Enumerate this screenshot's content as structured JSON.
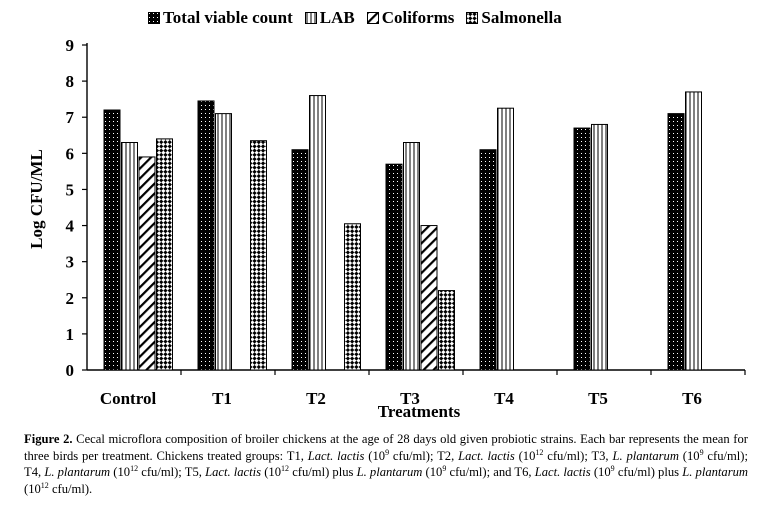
{
  "chart_data": {
    "type": "bar",
    "title": "",
    "xlabel": "Treatments",
    "ylabel": "Log CFU/ML",
    "ylim": [
      0,
      9
    ],
    "yticks": [
      "0",
      "1",
      "2",
      "3",
      "4",
      "5",
      "6",
      "7",
      "8",
      "9"
    ],
    "categories": [
      "Control",
      "T1",
      "T2",
      "T3",
      "T4",
      "T5",
      "T6"
    ],
    "legend_position": "top",
    "series": [
      {
        "name": "Total viable count",
        "pattern": "dots",
        "values": [
          7.2,
          7.45,
          6.1,
          5.7,
          6.1,
          6.7,
          7.1
        ]
      },
      {
        "name": "LAB",
        "pattern": "vlines",
        "values": [
          6.3,
          7.1,
          7.6,
          6.3,
          7.25,
          6.8,
          7.7
        ]
      },
      {
        "name": "Coliforms",
        "pattern": "diag",
        "values": [
          5.9,
          null,
          null,
          4.0,
          null,
          null,
          null
        ]
      },
      {
        "name": "Salmonella",
        "pattern": "checker",
        "values": [
          6.4,
          6.35,
          4.05,
          2.2,
          null,
          null,
          null
        ]
      }
    ],
    "colors": {
      "fill": "#000000",
      "background": "#ffffff"
    }
  },
  "caption": {
    "label": "Figure 2.",
    "parts": [
      " Cecal microflora composition of broiler chickens at the age of 28 days old given probiotic strains. Each bar represents the mean for three birds per treatment. Chickens treated groups: T1, ",
      "Lact. lactis",
      " (10",
      "9",
      " cfu/ml); T2, ",
      "Lact. lactis",
      " (10",
      "12",
      " cfu/ml); T3, ",
      "L. plantarum",
      " (10",
      "9",
      " cfu/ml); T4, ",
      "L. plantarum",
      " (10",
      "12",
      " cfu/ml); T5, ",
      "Lact. lactis",
      " (10",
      "12",
      " cfu/ml) plus ",
      "L. plantarum",
      " (10",
      "9",
      " cfu/ml); and T6, ",
      "Lact. lactis",
      " (10",
      "9",
      " cfu/ml) plus ",
      "L. plantarum",
      " (10",
      "12",
      " cfu/ml)."
    ]
  }
}
